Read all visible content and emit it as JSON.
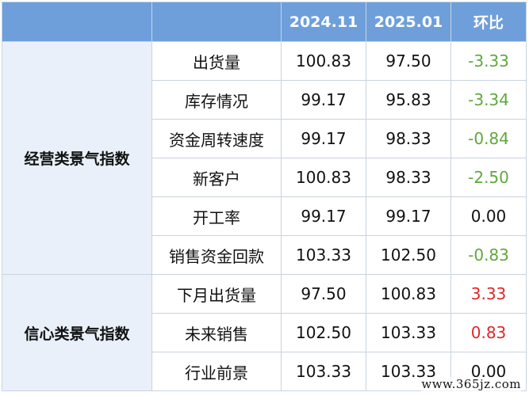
{
  "header": {
    "col0": "",
    "col1": "",
    "col2": "2024.11",
    "col3": "2025.01",
    "col4": "环比"
  },
  "groups": [
    {
      "label": "经营类景气指数",
      "rows": [
        {
          "metric": "出货量",
          "v2024": "100.83",
          "v2025": "97.50",
          "change": "-3.33",
          "trend": "neg"
        },
        {
          "metric": "库存情况",
          "v2024": "99.17",
          "v2025": "95.83",
          "change": "-3.34",
          "trend": "neg"
        },
        {
          "metric": "资金周转速度",
          "v2024": "99.17",
          "v2025": "98.33",
          "change": "-0.84",
          "trend": "neg"
        },
        {
          "metric": "新客户",
          "v2024": "100.83",
          "v2025": "98.33",
          "change": "-2.50",
          "trend": "neg"
        },
        {
          "metric": "开工率",
          "v2024": "99.17",
          "v2025": "99.17",
          "change": "0.00",
          "trend": "zero"
        },
        {
          "metric": "销售资金回款",
          "v2024": "103.33",
          "v2025": "102.50",
          "change": "-0.83",
          "trend": "neg"
        }
      ]
    },
    {
      "label": "信心类景气指数",
      "rows": [
        {
          "metric": "下月出货量",
          "v2024": "97.50",
          "v2025": "100.83",
          "change": "3.33",
          "trend": "pos"
        },
        {
          "metric": "未来销售",
          "v2024": "102.50",
          "v2025": "103.33",
          "change": "0.83",
          "trend": "pos"
        },
        {
          "metric": "行业前景",
          "v2024": "103.33",
          "v2025": "103.33",
          "change": "0.00",
          "trend": "zero"
        }
      ]
    }
  ],
  "colors": {
    "header_bg": "#6e9fdb",
    "category_bg": "#e9f0fa",
    "negative": "#5fa83b",
    "positive": "#e0262a"
  },
  "watermark": "www.365jz.com"
}
